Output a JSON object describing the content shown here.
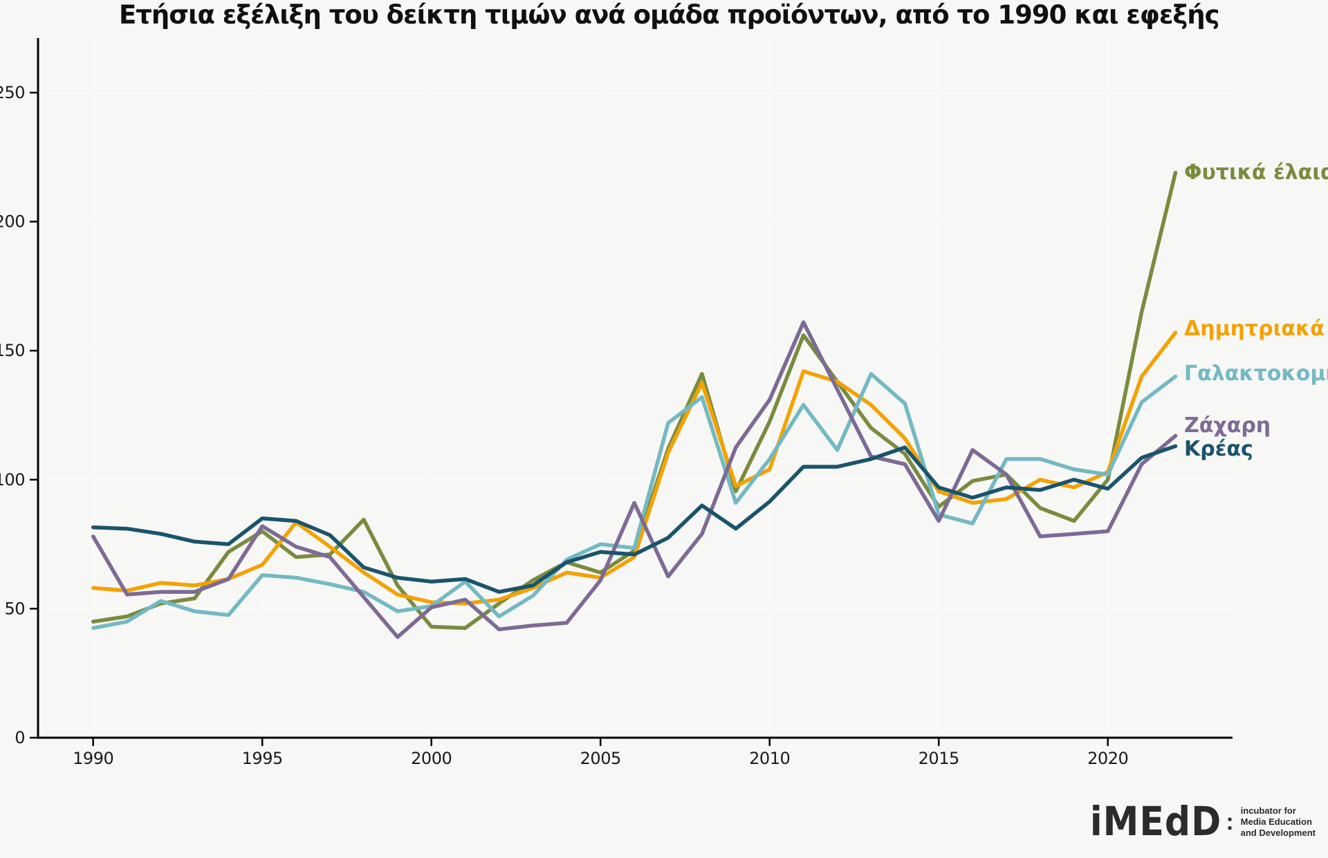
{
  "title": "Ετήσια εξέλιξη του δείκτη τιμών ανά ομάδα προϊόντων, από το 1990 και εφεξής",
  "chart_data": {
    "type": "line",
    "x": [
      1990,
      1991,
      1992,
      1993,
      1994,
      1995,
      1996,
      1997,
      1998,
      1999,
      2000,
      2001,
      2002,
      2003,
      2004,
      2005,
      2006,
      2007,
      2008,
      2009,
      2010,
      2011,
      2012,
      2013,
      2014,
      2015,
      2016,
      2017,
      2018,
      2019,
      2020,
      2021,
      2022
    ],
    "series": [
      {
        "name": "Φυτικά έλαια",
        "color": "#7a8b3e",
        "values": [
          45,
          47,
          52,
          54,
          72,
          80,
          70,
          71,
          84.5,
          59,
          43,
          42.5,
          52,
          61,
          68,
          64,
          72.5,
          112,
          141,
          95.5,
          122.5,
          156,
          138,
          120,
          110,
          89.5,
          99.5,
          102,
          89,
          84,
          100,
          165,
          219
        ]
      },
      {
        "name": "Δημητριακά",
        "color": "#f3a204",
        "values": [
          58,
          57,
          60,
          59,
          61.5,
          67,
          83.5,
          74,
          64,
          55.5,
          52.5,
          52,
          53.5,
          58,
          64,
          62,
          70,
          110.5,
          137.5,
          97.5,
          104,
          142,
          138,
          129,
          116,
          95.5,
          91,
          92.5,
          100,
          97,
          103,
          140,
          157
        ]
      },
      {
        "name": "Γαλακτοκομικά",
        "color": "#73b9c3",
        "values": [
          42.5,
          45,
          53,
          49,
          47.5,
          63,
          62,
          59.5,
          56.5,
          49,
          51,
          60.5,
          47,
          55,
          69,
          75,
          73.5,
          122,
          132,
          91,
          108,
          129,
          111.5,
          141,
          129.5,
          86.5,
          83,
          108,
          108,
          104,
          102,
          130,
          140
        ]
      },
      {
        "name": "Ζάχαρη",
        "color": "#7d6a95",
        "values": [
          78,
          55.5,
          56.5,
          56.5,
          61.5,
          82,
          74,
          70,
          54.5,
          39,
          50.5,
          53.5,
          42,
          43.5,
          44.5,
          61,
          91,
          62.5,
          79,
          112.5,
          131,
          161,
          135,
          109,
          106,
          84,
          111.5,
          102,
          78,
          79,
          80,
          106,
          117
        ]
      },
      {
        "name": "Κρέας",
        "color": "#1a546c",
        "values": [
          81.5,
          81,
          79,
          76,
          75,
          85,
          84,
          78.5,
          66,
          62,
          60.5,
          61.5,
          56.5,
          59,
          68,
          72,
          71,
          77.5,
          90,
          81,
          91.5,
          105,
          105,
          108,
          112.5,
          97,
          93,
          97,
          96,
          100,
          96.5,
          108.5,
          113
        ]
      }
    ],
    "xticks": [
      1990,
      1995,
      2000,
      2005,
      2010,
      2015,
      2020
    ],
    "yticks": [
      0,
      50,
      100,
      150,
      200,
      250
    ],
    "ylim": [
      0,
      271
    ],
    "xlabel": "",
    "ylabel": "",
    "grid": "faint white gridlines at tick positions",
    "legend_position": "right of line ends"
  },
  "logo": {
    "mark": "iMEdD",
    "colon": ":",
    "tagline_lines": [
      "incubator for",
      "Media Education",
      "and Development"
    ]
  }
}
